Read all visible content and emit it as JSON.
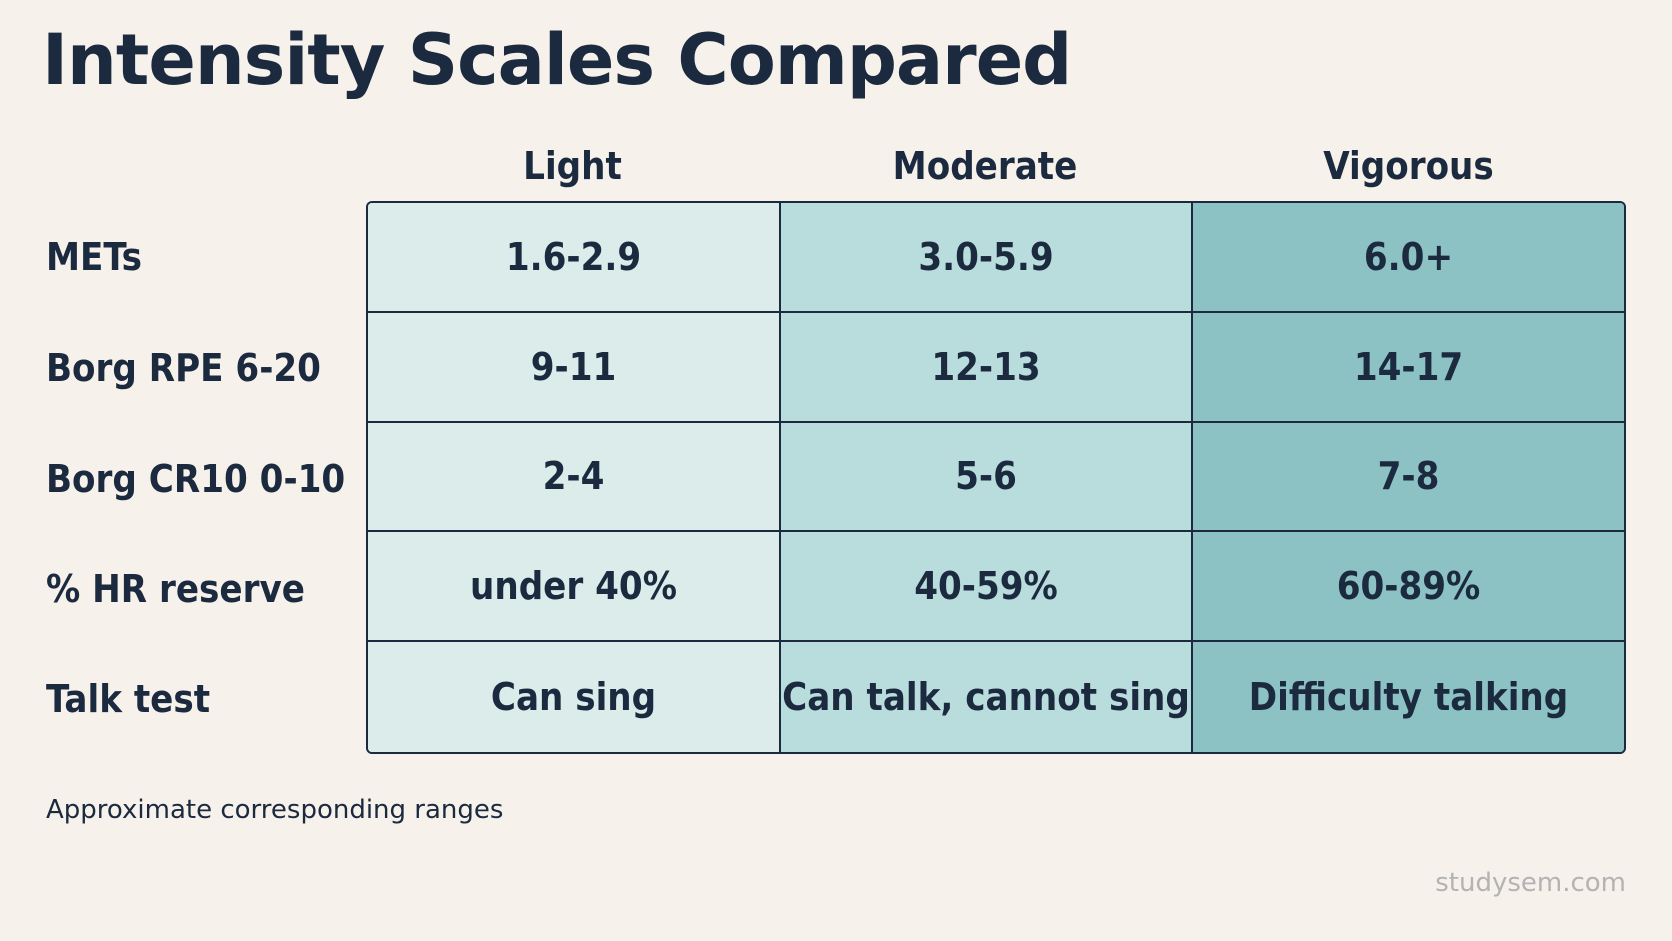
{
  "title": "Intensity Scales Compared",
  "columns": [
    "Light",
    "Moderate",
    "Vigorous"
  ],
  "rows": [
    {
      "label": "METs",
      "values": [
        "1.6-2.9",
        "3.0-5.9",
        "6.0+"
      ]
    },
    {
      "label": "Borg RPE 6-20",
      "values": [
        "9-11",
        "12-13",
        "14-17"
      ]
    },
    {
      "label": "Borg CR10 0-10",
      "values": [
        "2-4",
        "5-6",
        "7-8"
      ]
    },
    {
      "label": "% HR reserve",
      "values": [
        "under 40%",
        "40-59%",
        "60-89%"
      ]
    },
    {
      "label": "Talk test",
      "values": [
        "Can sing",
        "Can talk, cannot sing",
        "Difficulty talking"
      ]
    }
  ],
  "note": "Approximate corresponding ranges",
  "watermark": "studysem.com",
  "colors": {
    "background": "#f6f1ea",
    "text": "#1b2a3e",
    "light_col": "#dbeceb",
    "moderate_col": "#b9dcdc",
    "vigorous_col": "#8dc2c5"
  }
}
